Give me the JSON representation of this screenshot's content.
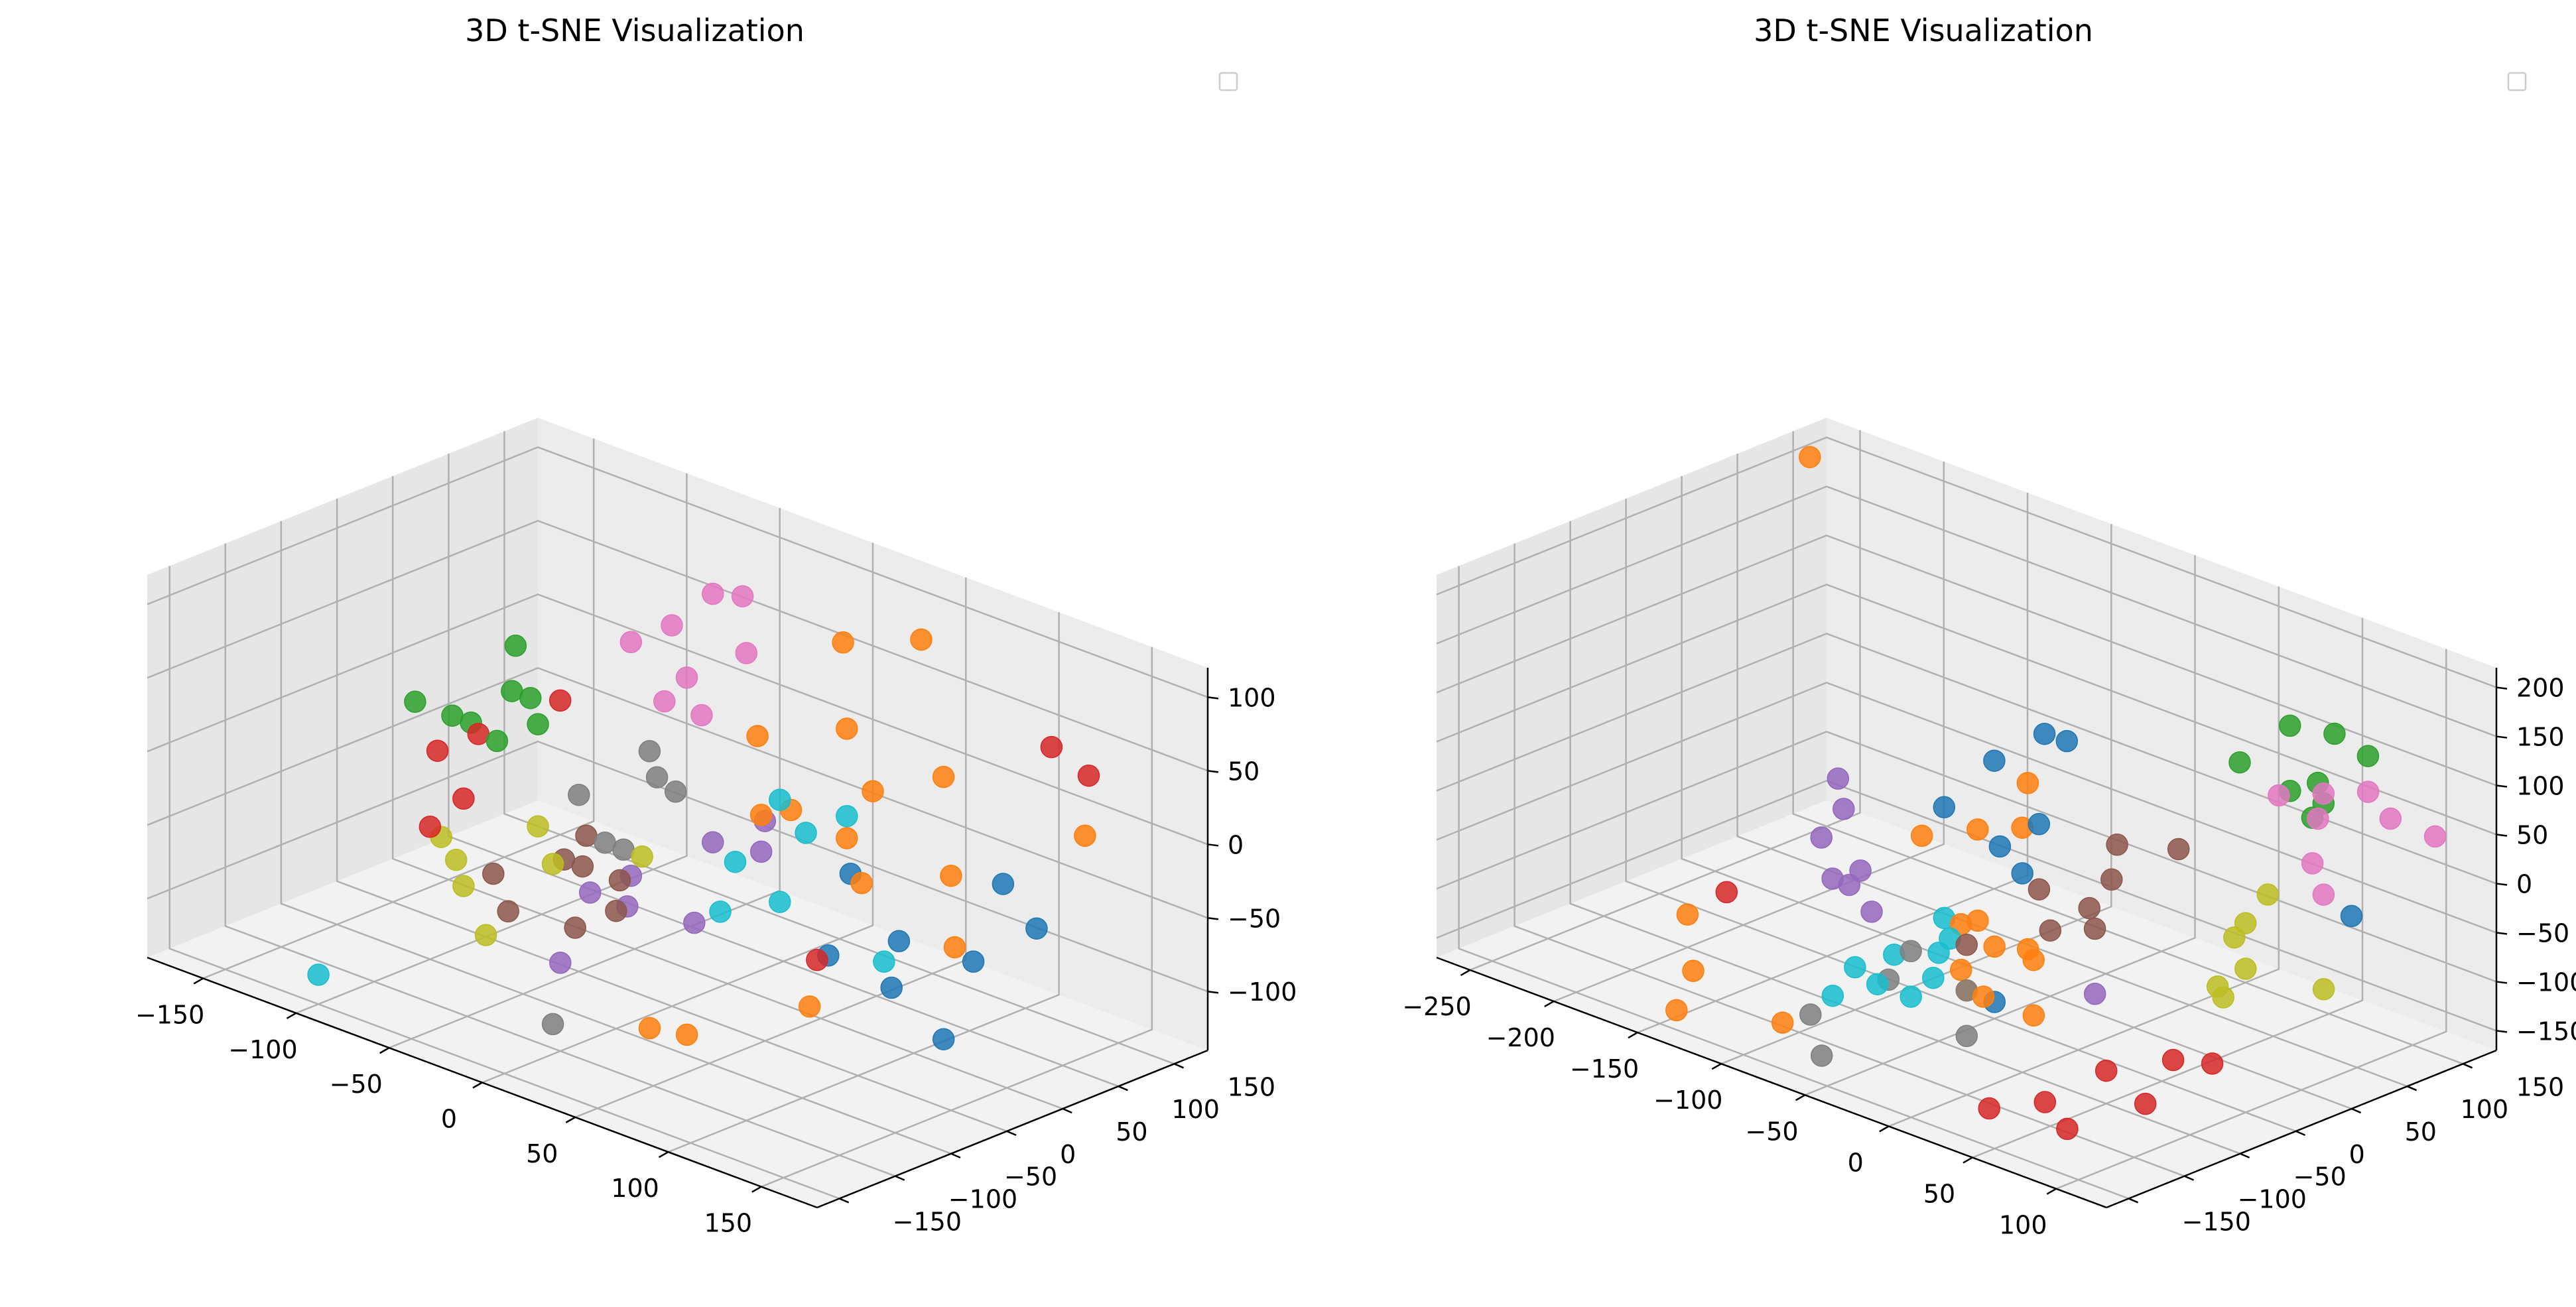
{
  "colors": [
    "#1f77b4",
    "#ff7f0e",
    "#2ca02c",
    "#d62728",
    "#9467bd",
    "#8c564b",
    "#e377c2",
    "#7f7f7f",
    "#bcbd22",
    "#17becf"
  ],
  "chart_data": [
    {
      "type": "scatter",
      "title": "3D t-SNE Visualization",
      "legend": "top-right",
      "legend_entries": [],
      "grid": true,
      "xlim": [
        -180,
        180
      ],
      "ylim": [
        -170,
        180
      ],
      "zlim": [
        -140,
        120
      ],
      "xticks": [
        -150,
        -100,
        -50,
        0,
        50,
        100,
        150
      ],
      "yticks": [
        -150,
        -100,
        -50,
        0,
        50,
        100,
        150
      ],
      "zticks": [
        -100,
        -50,
        0,
        50,
        100
      ],
      "points": [
        {
          "x": 60,
          "y": 60,
          "z": -40,
          "c": 0
        },
        {
          "x": 110,
          "y": 20,
          "z": -50,
          "c": 0
        },
        {
          "x": 130,
          "y": -20,
          "z": -60,
          "c": 0
        },
        {
          "x": 150,
          "y": 20,
          "z": -45,
          "c": 0
        },
        {
          "x": 90,
          "y": -10,
          "z": -60,
          "c": 0
        },
        {
          "x": 160,
          "y": 60,
          "z": -30,
          "c": 0
        },
        {
          "x": 170,
          "y": -40,
          "z": -70,
          "c": 0
        },
        {
          "x": 130,
          "y": 80,
          "z": -20,
          "c": 0
        },
        {
          "x": 20,
          "y": 120,
          "z": 80,
          "c": 1
        },
        {
          "x": 50,
          "y": 140,
          "z": 90,
          "c": 1
        },
        {
          "x": 10,
          "y": 60,
          "z": 30,
          "c": 1
        },
        {
          "x": 40,
          "y": 90,
          "z": 40,
          "c": 1
        },
        {
          "x": 60,
          "y": 80,
          "z": 10,
          "c": 1
        },
        {
          "x": 80,
          "y": 110,
          "z": 20,
          "c": 1
        },
        {
          "x": 70,
          "y": 40,
          "z": -5,
          "c": 1
        },
        {
          "x": 90,
          "y": 20,
          "z": -20,
          "c": 1
        },
        {
          "x": 120,
          "y": 50,
          "z": -10,
          "c": 1
        },
        {
          "x": 150,
          "y": 120,
          "z": 10,
          "c": 1
        },
        {
          "x": 140,
          "y": 20,
          "z": -40,
          "c": 1
        },
        {
          "x": 110,
          "y": -60,
          "z": -70,
          "c": 1
        },
        {
          "x": 60,
          "y": -120,
          "z": -90,
          "c": 1
        },
        {
          "x": 80,
          "y": -120,
          "z": -85,
          "c": 1
        },
        {
          "x": 40,
          "y": 40,
          "z": 0,
          "c": 1
        },
        {
          "x": 30,
          "y": 30,
          "z": -5,
          "c": 1
        },
        {
          "x": -120,
          "y": 60,
          "z": 30,
          "c": 2
        },
        {
          "x": -110,
          "y": 40,
          "z": 10,
          "c": 2
        },
        {
          "x": -100,
          "y": 40,
          "z": 10,
          "c": 2
        },
        {
          "x": -90,
          "y": 30,
          "z": 0,
          "c": 2
        },
        {
          "x": -150,
          "y": 20,
          "z": -10,
          "c": 2
        },
        {
          "x": -130,
          "y": 20,
          "z": -10,
          "c": 2
        },
        {
          "x": -120,
          "y": 20,
          "z": -10,
          "c": 2
        },
        {
          "x": -100,
          "y": 10,
          "z": -10,
          "c": 2
        },
        {
          "x": -90,
          "y": 50,
          "z": 10,
          "c": 3
        },
        {
          "x": -110,
          "y": 10,
          "z": -10,
          "c": 3
        },
        {
          "x": -120,
          "y": -10,
          "z": -20,
          "c": 3
        },
        {
          "x": -100,
          "y": -20,
          "z": -40,
          "c": 3
        },
        {
          "x": -100,
          "y": -50,
          "z": -50,
          "c": 3
        },
        {
          "x": 120,
          "y": 140,
          "z": 50,
          "c": 3
        },
        {
          "x": 140,
          "y": 140,
          "z": 40,
          "c": 3
        },
        {
          "x": 90,
          "y": -20,
          "z": -60,
          "c": 3
        },
        {
          "x": 20,
          "y": 50,
          "z": -20,
          "c": 4
        },
        {
          "x": 10,
          "y": 20,
          "z": -30,
          "c": 4
        },
        {
          "x": 30,
          "y": 30,
          "z": -30,
          "c": 4
        },
        {
          "x": -10,
          "y": -20,
          "z": -50,
          "c": 4
        },
        {
          "x": -20,
          "y": -40,
          "z": -60,
          "c": 4
        },
        {
          "x": 0,
          "y": -40,
          "z": -60,
          "c": 4
        },
        {
          "x": 30,
          "y": -30,
          "z": -60,
          "c": 4
        },
        {
          "x": 0,
          "y": -100,
          "z": -80,
          "c": 4
        },
        {
          "x": -40,
          "y": -10,
          "z": -40,
          "c": 5
        },
        {
          "x": -40,
          "y": -30,
          "z": -50,
          "c": 5
        },
        {
          "x": -30,
          "y": -30,
          "z": -50,
          "c": 5
        },
        {
          "x": -10,
          "y": -30,
          "z": -50,
          "c": 5
        },
        {
          "x": -60,
          "y": -60,
          "z": -60,
          "c": 5
        },
        {
          "x": -40,
          "y": -80,
          "z": -70,
          "c": 5
        },
        {
          "x": -10,
          "y": -70,
          "z": -70,
          "c": 5
        },
        {
          "x": 0,
          "y": -50,
          "z": -60,
          "c": 5
        },
        {
          "x": -50,
          "y": 120,
          "z": 80,
          "c": 6
        },
        {
          "x": -40,
          "y": 130,
          "z": 80,
          "c": 6
        },
        {
          "x": -60,
          "y": 100,
          "z": 60,
          "c": 6
        },
        {
          "x": -20,
          "y": 100,
          "z": 60,
          "c": 6
        },
        {
          "x": -70,
          "y": 80,
          "z": 50,
          "c": 6
        },
        {
          "x": -40,
          "y": 80,
          "z": 40,
          "c": 6
        },
        {
          "x": -40,
          "y": 60,
          "z": 30,
          "c": 6
        },
        {
          "x": -20,
          "y": 60,
          "z": 30,
          "c": 6
        },
        {
          "x": -30,
          "y": 30,
          "z": 10,
          "c": 7
        },
        {
          "x": -20,
          "y": 20,
          "z": 0,
          "c": 7
        },
        {
          "x": -10,
          "y": 20,
          "z": -5,
          "c": 7
        },
        {
          "x": -50,
          "y": 0,
          "z": -20,
          "c": 7
        },
        {
          "x": -30,
          "y": -10,
          "z": -40,
          "c": 7
        },
        {
          "x": -20,
          "y": -10,
          "z": -40,
          "c": 7
        },
        {
          "x": 20,
          "y": -140,
          "z": -100,
          "c": 7
        },
        {
          "x": -60,
          "y": -20,
          "z": -40,
          "c": 8
        },
        {
          "x": -100,
          "y": -40,
          "z": -60,
          "c": 8
        },
        {
          "x": -80,
          "y": -60,
          "z": -60,
          "c": 8
        },
        {
          "x": -70,
          "y": -70,
          "z": -70,
          "c": 8
        },
        {
          "x": -40,
          "y": -40,
          "z": -50,
          "c": 8
        },
        {
          "x": -10,
          "y": -10,
          "z": -40,
          "c": 8
        },
        {
          "x": -40,
          "y": -100,
          "z": -80,
          "c": 8
        },
        {
          "x": 40,
          "y": 30,
          "z": 10,
          "c": 9
        },
        {
          "x": 70,
          "y": 40,
          "z": 10,
          "c": 9
        },
        {
          "x": 60,
          "y": 20,
          "z": 0,
          "c": 9
        },
        {
          "x": 40,
          "y": -10,
          "z": -20,
          "c": 9
        },
        {
          "x": 70,
          "y": -20,
          "z": -30,
          "c": 9
        },
        {
          "x": 50,
          "y": -40,
          "z": -40,
          "c": 9
        },
        {
          "x": 120,
          "y": -10,
          "z": -50,
          "c": 9
        },
        {
          "x": -100,
          "y": -150,
          "z": -120,
          "c": 9
        }
      ]
    },
    {
      "type": "scatter",
      "title": "3D t-SNE Visualization",
      "legend": "top-right",
      "legend_entries": [],
      "grid": true,
      "xlim": [
        -270,
        130
      ],
      "ylim": [
        -170,
        180
      ],
      "zlim": [
        -170,
        220
      ],
      "xticks": [
        -250,
        -200,
        -150,
        -100,
        -50,
        0,
        50,
        100
      ],
      "yticks": [
        -150,
        -100,
        -50,
        0,
        50,
        100,
        150
      ],
      "zticks": [
        -150,
        -100,
        -50,
        0,
        50,
        100,
        150,
        200
      ],
      "points": [
        {
          "x": -60,
          "y": 80,
          "z": 70,
          "c": 0
        },
        {
          "x": -90,
          "y": 60,
          "z": 40,
          "c": 0
        },
        {
          "x": -50,
          "y": 40,
          "z": 10,
          "c": 0
        },
        {
          "x": -100,
          "y": 30,
          "z": 0,
          "c": 0
        },
        {
          "x": -60,
          "y": 20,
          "z": -10,
          "c": 0
        },
        {
          "x": -40,
          "y": 10,
          "z": -20,
          "c": 0
        },
        {
          "x": 110,
          "y": 80,
          "z": 0,
          "c": 0
        },
        {
          "x": -10,
          "y": -60,
          "z": -100,
          "c": 0
        },
        {
          "x": -80,
          "y": 90,
          "z": 60,
          "c": 0
        },
        {
          "x": -260,
          "y": 150,
          "z": 200,
          "c": 1
        },
        {
          "x": -70,
          "y": 60,
          "z": 30,
          "c": 1
        },
        {
          "x": -60,
          "y": 40,
          "z": 0,
          "c": 1
        },
        {
          "x": -80,
          "y": 30,
          "z": -10,
          "c": 1
        },
        {
          "x": -100,
          "y": 10,
          "z": -20,
          "c": 1
        },
        {
          "x": -40,
          "y": -30,
          "z": -50,
          "c": 1
        },
        {
          "x": -50,
          "y": -30,
          "z": -60,
          "c": 1
        },
        {
          "x": -30,
          "y": -30,
          "z": -70,
          "c": 1
        },
        {
          "x": -10,
          "y": -30,
          "z": -60,
          "c": 1
        },
        {
          "x": 0,
          "y": -40,
          "z": -60,
          "c": 1
        },
        {
          "x": -30,
          "y": -60,
          "z": -80,
          "c": 1
        },
        {
          "x": -20,
          "y": -70,
          "z": -90,
          "c": 1
        },
        {
          "x": -10,
          "y": -70,
          "z": -90,
          "c": 1
        },
        {
          "x": 20,
          "y": -70,
          "z": -90,
          "c": 1
        },
        {
          "x": -180,
          "y": -80,
          "z": -110,
          "c": 1
        },
        {
          "x": -150,
          "y": -120,
          "z": -130,
          "c": 1
        },
        {
          "x": -140,
          "y": -150,
          "z": -150,
          "c": 1
        },
        {
          "x": -90,
          "y": -130,
          "z": -140,
          "c": 1
        },
        {
          "x": 20,
          "y": 160,
          "z": 100,
          "c": 2
        },
        {
          "x": 40,
          "y": 170,
          "z": 100,
          "c": 2
        },
        {
          "x": 60,
          "y": 170,
          "z": 90,
          "c": 2
        },
        {
          "x": 10,
          "y": 130,
          "z": 70,
          "c": 2
        },
        {
          "x": 40,
          "y": 130,
          "z": 60,
          "c": 2
        },
        {
          "x": 60,
          "y": 130,
          "z": 60,
          "c": 2
        },
        {
          "x": 50,
          "y": 140,
          "z": 70,
          "c": 2
        },
        {
          "x": 60,
          "y": 120,
          "z": 50,
          "c": 2
        },
        {
          "x": -170,
          "y": -60,
          "z": -90,
          "c": 3
        },
        {
          "x": 120,
          "y": -60,
          "z": -80,
          "c": 3
        },
        {
          "x": 90,
          "y": -50,
          "z": -100,
          "c": 3
        },
        {
          "x": 70,
          "y": -80,
          "z": -110,
          "c": 3
        },
        {
          "x": 100,
          "y": -90,
          "z": -120,
          "c": 3
        },
        {
          "x": 60,
          "y": -120,
          "z": -130,
          "c": 3
        },
        {
          "x": 40,
          "y": -140,
          "z": -140,
          "c": 3
        },
        {
          "x": 80,
          "y": -130,
          "z": -140,
          "c": 3
        },
        {
          "x": -170,
          "y": 40,
          "z": -20,
          "c": 4
        },
        {
          "x": -160,
          "y": 30,
          "z": -40,
          "c": 4
        },
        {
          "x": -160,
          "y": 10,
          "z": -60,
          "c": 4
        },
        {
          "x": -130,
          "y": 0,
          "z": -70,
          "c": 4
        },
        {
          "x": -140,
          "y": -10,
          "z": -80,
          "c": 4
        },
        {
          "x": -130,
          "y": -10,
          "z": -80,
          "c": 4
        },
        {
          "x": -110,
          "y": -20,
          "z": -90,
          "c": 4
        },
        {
          "x": 30,
          "y": -30,
          "z": -80,
          "c": 4
        },
        {
          "x": -10,
          "y": 50,
          "z": 10,
          "c": 5
        },
        {
          "x": 20,
          "y": 60,
          "z": 20,
          "c": 5
        },
        {
          "x": 0,
          "y": 30,
          "z": -10,
          "c": 5
        },
        {
          "x": -30,
          "y": 10,
          "z": -30,
          "c": 5
        },
        {
          "x": 0,
          "y": 10,
          "z": -30,
          "c": 5
        },
        {
          "x": 10,
          "y": 0,
          "z": -40,
          "c": 5
        },
        {
          "x": -10,
          "y": -10,
          "z": -50,
          "c": 5
        },
        {
          "x": -40,
          "y": -40,
          "z": -70,
          "c": 5
        },
        {
          "x": 40,
          "y": 120,
          "z": 60,
          "c": 6
        },
        {
          "x": 60,
          "y": 130,
          "z": 70,
          "c": 6
        },
        {
          "x": 80,
          "y": 140,
          "z": 80,
          "c": 6
        },
        {
          "x": 100,
          "y": 130,
          "z": 70,
          "c": 6
        },
        {
          "x": 120,
          "y": 140,
          "z": 60,
          "c": 6
        },
        {
          "x": 70,
          "y": 110,
          "z": 60,
          "c": 6
        },
        {
          "x": 80,
          "y": 90,
          "z": 30,
          "c": 6
        },
        {
          "x": 100,
          "y": 70,
          "z": 20,
          "c": 6
        },
        {
          "x": -60,
          "y": -60,
          "z": -80,
          "c": 7
        },
        {
          "x": -60,
          "y": -80,
          "z": -100,
          "c": 7
        },
        {
          "x": 0,
          "y": -100,
          "z": -110,
          "c": 7
        },
        {
          "x": -20,
          "y": -70,
          "z": -90,
          "c": 7
        },
        {
          "x": -80,
          "y": -120,
          "z": -130,
          "c": 7
        },
        {
          "x": -60,
          "y": -140,
          "z": -150,
          "c": 7
        },
        {
          "x": 60,
          "y": 80,
          "z": -10,
          "c": 8
        },
        {
          "x": 60,
          "y": 60,
          "z": -30,
          "c": 8
        },
        {
          "x": 60,
          "y": 50,
          "z": -40,
          "c": 8
        },
        {
          "x": 80,
          "y": 30,
          "z": -50,
          "c": 8
        },
        {
          "x": 120,
          "y": 40,
          "z": -50,
          "c": 8
        },
        {
          "x": 70,
          "y": 20,
          "z": -70,
          "c": 8
        },
        {
          "x": 80,
          "y": 10,
          "z": -70,
          "c": 8
        },
        {
          "x": -60,
          "y": -30,
          "z": -60,
          "c": 9
        },
        {
          "x": -50,
          "y": -40,
          "z": -70,
          "c": 9
        },
        {
          "x": -50,
          "y": -50,
          "z": -80,
          "c": 9
        },
        {
          "x": -70,
          "y": -60,
          "z": -90,
          "c": 9
        },
        {
          "x": -40,
          "y": -70,
          "z": -90,
          "c": 9
        },
        {
          "x": -60,
          "y": -90,
          "z": -100,
          "c": 9
        },
        {
          "x": -40,
          "y": -90,
          "z": -100,
          "c": 9
        },
        {
          "x": -80,
          "y": -100,
          "z": -120,
          "c": 9
        },
        {
          "x": -80,
          "y": -80,
          "z": -100,
          "c": 9
        }
      ]
    }
  ]
}
